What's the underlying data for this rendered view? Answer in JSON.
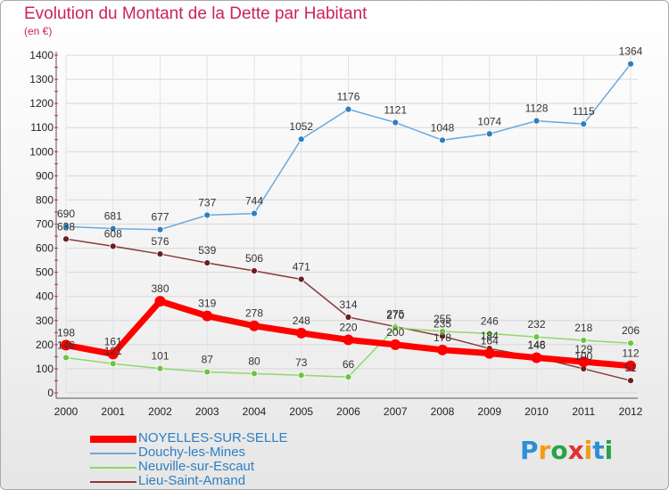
{
  "title": "Evolution du Montant de la Dette par Habitant",
  "subtitle": "(en €)",
  "logo": {
    "letters": [
      "P",
      "r",
      "o",
      "x",
      "i",
      "t",
      "i"
    ],
    "colors": [
      "#2e8fd8",
      "#f39c12",
      "#27a34a",
      "#e03131",
      "#f39c12",
      "#2e8fd8",
      "#27a34a"
    ]
  },
  "chart_data": {
    "type": "line",
    "x": [
      "2000",
      "2001",
      "2002",
      "2003",
      "2004",
      "2005",
      "2006",
      "2007",
      "2008",
      "2009",
      "2010",
      "2011",
      "2012"
    ],
    "ylim": [
      0,
      1400
    ],
    "yticks": [
      "0",
      "100",
      "200",
      "300",
      "400",
      "500",
      "600",
      "700",
      "800",
      "900",
      "1000",
      "1100",
      "1200",
      "1300",
      "1400"
    ],
    "grid": true,
    "legend_position": "bottom",
    "series": [
      {
        "name": "Douchy-les-Mines",
        "color": "#6fa8dc",
        "marker": "#2e7fc0",
        "width": 1.5,
        "values": [
          690,
          681,
          677,
          737,
          744,
          1052,
          1176,
          1121,
          1048,
          1074,
          1128,
          1115,
          1364
        ],
        "labels": [
          "690",
          "681",
          "677",
          "737",
          "744",
          "1052",
          "1176",
          "1121",
          "1048",
          "1074",
          "1128",
          "1115",
          "1364"
        ]
      },
      {
        "name": "Lieu-Saint-Amand",
        "color": "#8b3a3a",
        "marker": "#6b1f1f",
        "width": 1.5,
        "values": [
          638,
          608,
          576,
          539,
          506,
          471,
          314,
          275,
          235,
          184,
          148,
          100,
          51
        ],
        "labels": [
          "638",
          "608",
          "576",
          "539",
          "506",
          "471",
          "314",
          "275",
          "235",
          "184",
          "148",
          "100",
          "51"
        ]
      },
      {
        "name": "Neuville-sur-Escaut",
        "color": "#8fd86a",
        "marker": "#6cc43f",
        "width": 1.5,
        "values": [
          146,
          121,
          101,
          87,
          80,
          73,
          66,
          270,
          255,
          246,
          232,
          218,
          206
        ],
        "labels": [
          "146",
          "121",
          "101",
          "87",
          "80",
          "73",
          "66",
          "270",
          "255",
          "246",
          "232",
          "218",
          "206"
        ]
      },
      {
        "name": "NOYELLES-SUR-SELLE",
        "color": "#ff0000",
        "marker": "#ff0000",
        "width": 7,
        "values": [
          198,
          161,
          380,
          319,
          278,
          248,
          220,
          200,
          178,
          164,
          146,
          129,
          112
        ],
        "labels": [
          "198",
          "161",
          "380",
          "319",
          "278",
          "248",
          "220",
          "200",
          "178",
          "164",
          "146",
          "129",
          "112"
        ]
      }
    ],
    "legend_order": [
      "NOYELLES-SUR-SELLE",
      "Douchy-les-Mines",
      "Neuville-sur-Escaut",
      "Lieu-Saint-Amand"
    ]
  }
}
